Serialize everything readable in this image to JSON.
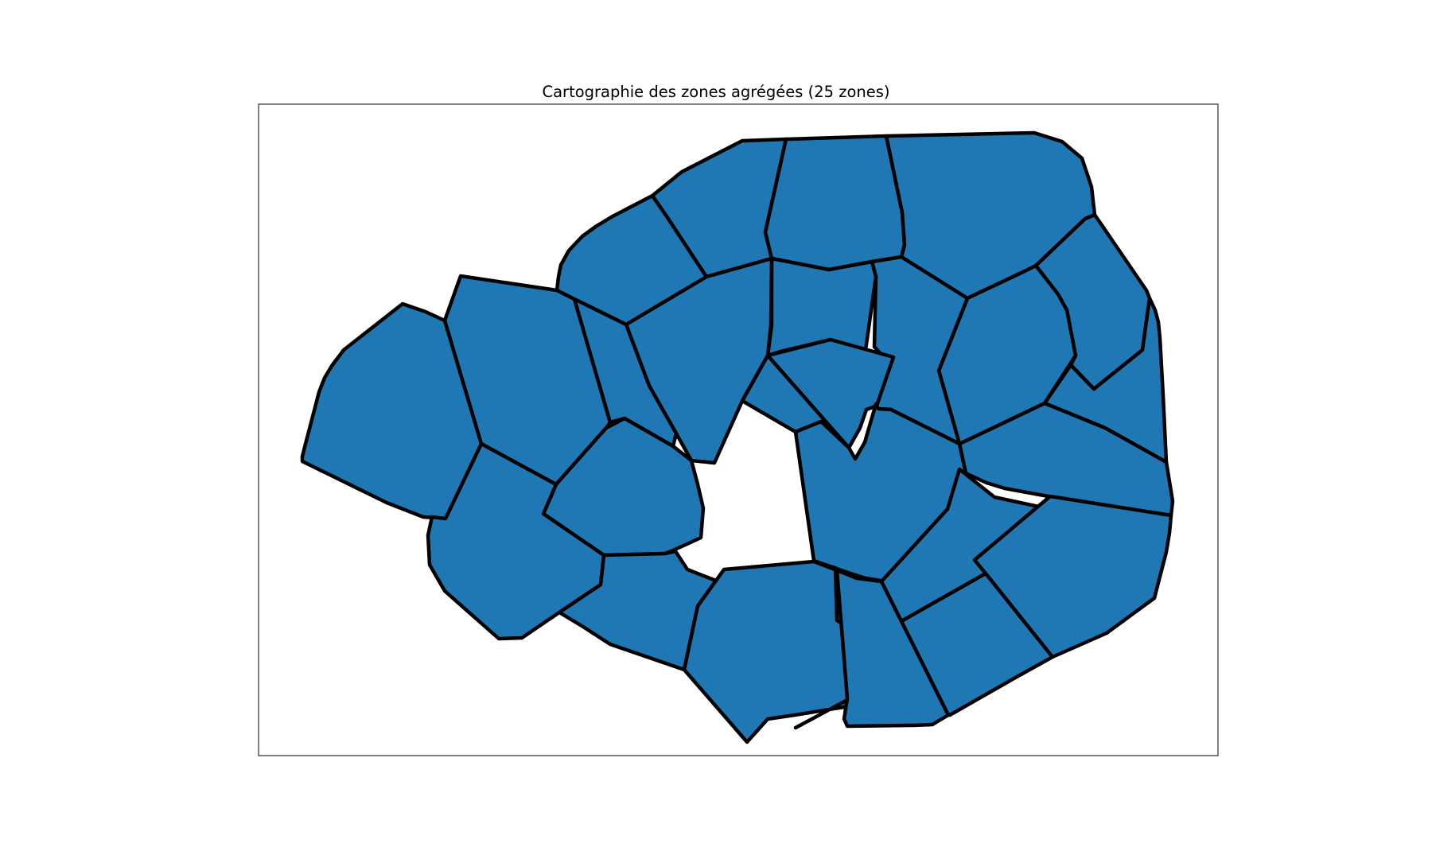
{
  "title": "Cartographie des zones agrégées (25 zones)",
  "colors": {
    "fill": "#1f77b4",
    "edge": "#000000",
    "frame": "#000000",
    "background": "#ffffff"
  }
}
